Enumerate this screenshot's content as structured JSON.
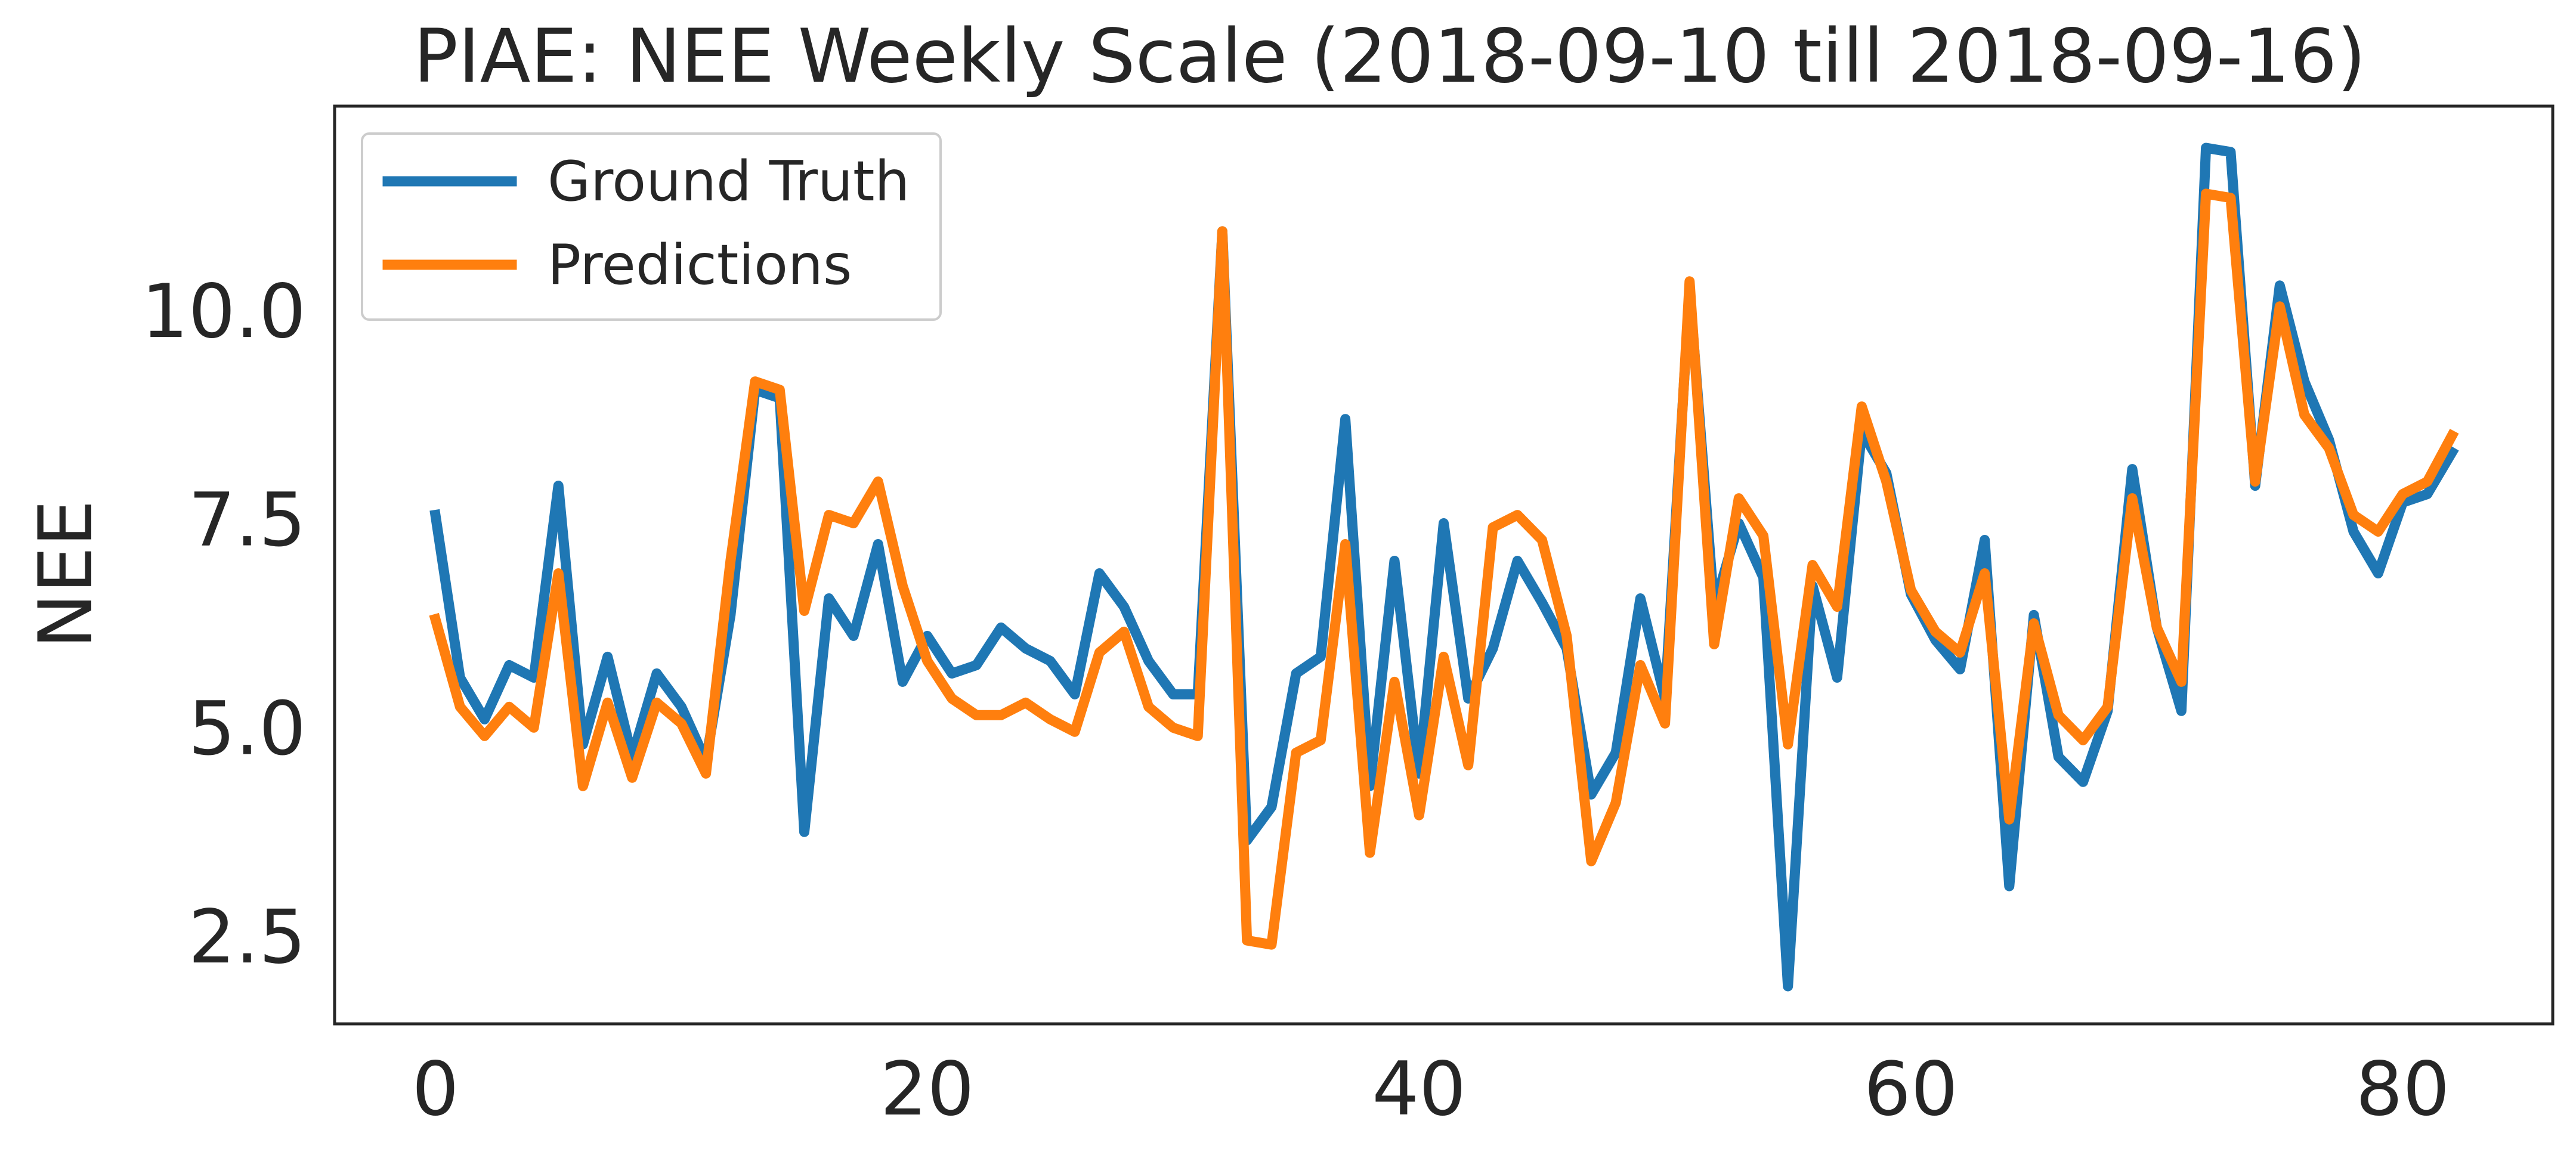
{
  "chart_data": {
    "type": "line",
    "title": "PIAE: NEE Weekly Scale (2018-09-10 till 2018-09-16)",
    "xlabel": "",
    "ylabel": "NEE",
    "xlim": [
      -4.1,
      86.1
    ],
    "ylim": [
      1.45,
      12.45
    ],
    "xticks": [
      0,
      20,
      40,
      60,
      80
    ],
    "xtick_labels": [
      "0",
      "20",
      "40",
      "60",
      "80"
    ],
    "yticks": [
      2.5,
      5.0,
      7.5,
      10.0
    ],
    "ytick_labels": [
      "2.5",
      "5.0",
      "7.5",
      "10.0"
    ],
    "grid": false,
    "legend_position": "upper-left",
    "x": [
      0,
      1,
      2,
      3,
      4,
      5,
      6,
      7,
      8,
      9,
      10,
      11,
      12,
      13,
      14,
      15,
      16,
      17,
      18,
      19,
      20,
      21,
      22,
      23,
      24,
      25,
      26,
      27,
      28,
      29,
      30,
      31,
      32,
      33,
      34,
      35,
      36,
      37,
      38,
      39,
      40,
      41,
      42,
      43,
      44,
      45,
      46,
      47,
      48,
      49,
      50,
      51,
      52,
      53,
      54,
      55,
      56,
      57,
      58,
      59,
      60,
      61,
      62,
      63,
      64,
      65,
      66,
      67,
      68,
      69,
      70,
      71,
      72,
      73,
      74,
      75,
      76,
      77,
      78,
      79,
      80,
      81,
      82
    ],
    "series": [
      {
        "name": "Ground Truth",
        "color": "#1f77b4",
        "values": [
          7.55,
          5.6,
          5.1,
          5.75,
          5.6,
          7.9,
          4.8,
          5.85,
          4.65,
          5.65,
          5.25,
          4.6,
          6.35,
          9.05,
          8.95,
          3.75,
          6.55,
          6.1,
          7.2,
          5.55,
          6.1,
          5.65,
          5.75,
          6.2,
          5.95,
          5.8,
          5.4,
          6.85,
          6.45,
          5.8,
          5.4,
          5.4,
          10.95,
          3.65,
          4.05,
          5.65,
          5.85,
          8.7,
          4.3,
          7.0,
          4.45,
          7.45,
          5.35,
          5.95,
          7.0,
          6.5,
          5.95,
          4.2,
          4.7,
          6.55,
          5.35,
          10.25,
          6.45,
          7.45,
          6.8,
          1.9,
          6.7,
          5.6,
          8.55,
          8.05,
          6.6,
          6.05,
          5.7,
          7.25,
          3.1,
          6.35,
          4.65,
          4.35,
          5.2,
          8.1,
          6.2,
          5.2,
          11.95,
          11.9,
          7.9,
          10.3,
          9.15,
          8.45,
          7.35,
          6.85,
          7.7,
          7.8,
          8.3
        ]
      },
      {
        "name": "Predictions",
        "color": "#ff7f0e",
        "values": [
          6.3,
          5.25,
          4.9,
          5.25,
          5.0,
          6.85,
          4.3,
          5.3,
          4.4,
          5.3,
          5.05,
          4.45,
          7.0,
          9.15,
          9.05,
          6.4,
          7.55,
          7.45,
          7.95,
          6.7,
          5.8,
          5.35,
          5.15,
          5.15,
          5.3,
          5.1,
          4.95,
          5.9,
          6.15,
          5.25,
          5.0,
          4.9,
          10.95,
          2.45,
          2.4,
          4.7,
          4.85,
          7.2,
          3.5,
          5.55,
          3.95,
          5.85,
          4.55,
          7.4,
          7.55,
          7.25,
          6.1,
          3.4,
          4.1,
          5.75,
          5.05,
          10.35,
          6.0,
          7.75,
          7.3,
          4.8,
          6.95,
          6.45,
          8.85,
          7.95,
          6.65,
          6.15,
          5.9,
          6.85,
          3.9,
          6.25,
          5.15,
          4.85,
          5.25,
          7.75,
          6.2,
          5.55,
          11.4,
          11.35,
          7.95,
          10.05,
          8.75,
          8.35,
          7.55,
          7.35,
          7.8,
          7.95,
          8.5
        ]
      }
    ]
  }
}
